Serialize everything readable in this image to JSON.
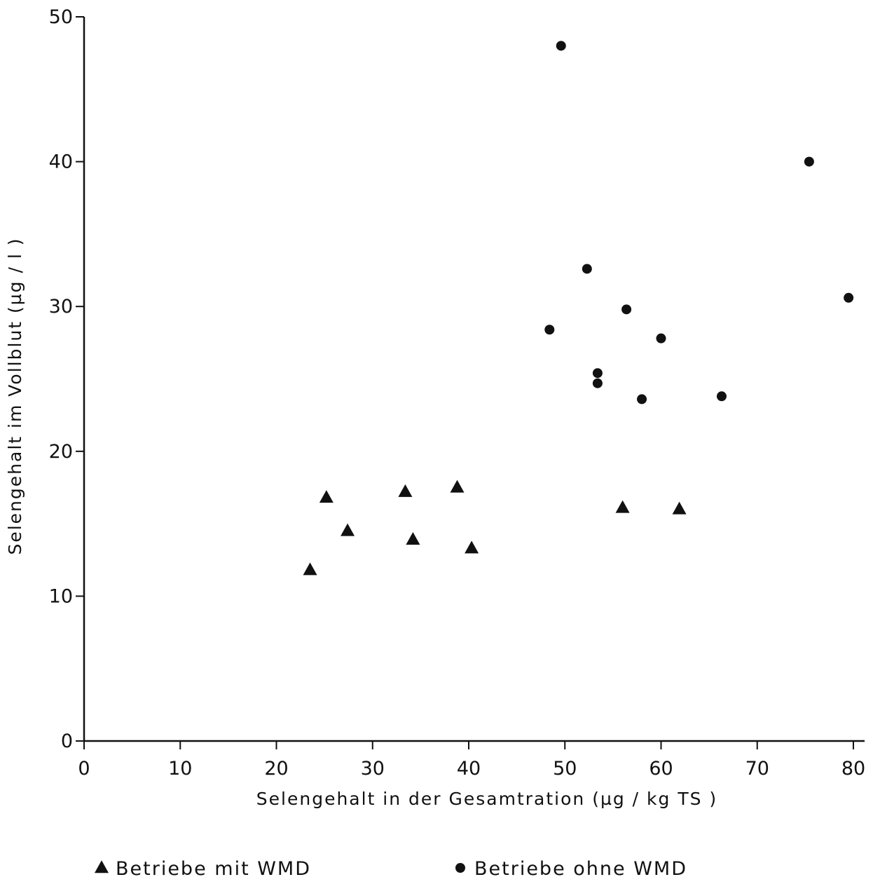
{
  "chart_data": {
    "type": "scatter",
    "xlabel": "Selengehalt in der Gesamtration (µg / kg TS )",
    "ylabel": "Selengehalt im Vollblut (µg / l )",
    "xlim": [
      0,
      80
    ],
    "ylim": [
      0,
      50
    ],
    "x_ticks": [
      "0",
      "10",
      "20",
      "30",
      "40",
      "50",
      "60",
      "70",
      "80"
    ],
    "y_ticks": [
      "0",
      "10",
      "20",
      "30",
      "40",
      "50"
    ],
    "grid": false,
    "legend_position": "bottom",
    "series": [
      {
        "name": "Betriebe mit WMD",
        "marker": "triangle",
        "color": "#111111",
        "points": [
          {
            "x": 23.5,
            "y": 11.8
          },
          {
            "x": 25.2,
            "y": 16.8
          },
          {
            "x": 27.4,
            "y": 14.5
          },
          {
            "x": 33.4,
            "y": 17.2
          },
          {
            "x": 34.2,
            "y": 13.9
          },
          {
            "x": 38.8,
            "y": 17.5
          },
          {
            "x": 40.3,
            "y": 13.3
          },
          {
            "x": 56.0,
            "y": 16.1
          },
          {
            "x": 61.9,
            "y": 16.0
          }
        ]
      },
      {
        "name": "Betriebe ohne WMD",
        "marker": "circle",
        "color": "#111111",
        "points": [
          {
            "x": 48.4,
            "y": 28.4
          },
          {
            "x": 49.6,
            "y": 48.0
          },
          {
            "x": 52.3,
            "y": 32.6
          },
          {
            "x": 53.4,
            "y": 25.4
          },
          {
            "x": 53.4,
            "y": 24.7
          },
          {
            "x": 56.4,
            "y": 29.8
          },
          {
            "x": 58.0,
            "y": 23.6
          },
          {
            "x": 60.0,
            "y": 27.8
          },
          {
            "x": 66.3,
            "y": 23.8
          },
          {
            "x": 75.4,
            "y": 40.0
          },
          {
            "x": 79.5,
            "y": 30.6
          }
        ]
      }
    ]
  }
}
